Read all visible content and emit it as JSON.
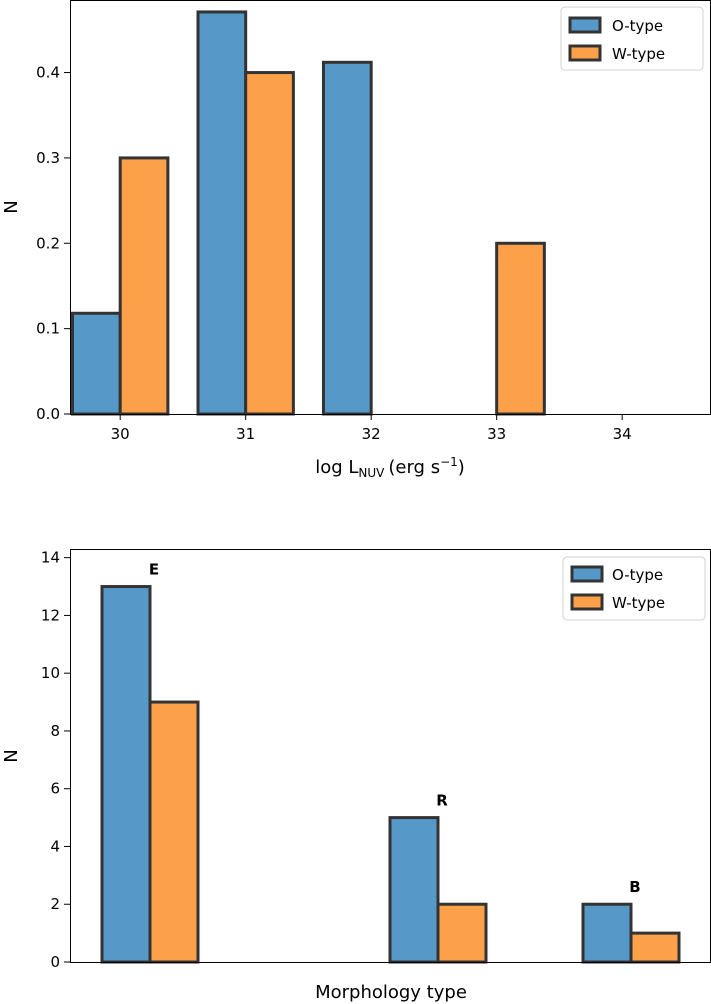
{
  "colors": {
    "o_type": "#5699c8",
    "w_type": "#fda04a",
    "edge": "#333333"
  },
  "chart_data": [
    {
      "type": "bar",
      "xlabel": "log L",
      "xlabel_sub": "NUV",
      "xlabel_unit": "(erg s",
      "xlabel_exp": "−1",
      "xlabel_close": ")",
      "ylabel": "N",
      "xlim": [
        29.6,
        34.7
      ],
      "ylim": [
        0,
        0.485
      ],
      "x_ticks": [
        30,
        31,
        32,
        33,
        34
      ],
      "x_tick_labels": [
        "30",
        "31",
        "32",
        "33",
        "34"
      ],
      "y_ticks": [
        0.0,
        0.1,
        0.2,
        0.3,
        0.4
      ],
      "y_tick_labels": [
        "0.0",
        "0.1",
        "0.2",
        "0.3",
        "0.4"
      ],
      "legend": "top-right",
      "series": [
        {
          "name": "O-type",
          "x": [
            30,
            31,
            32,
            33
          ],
          "values": [
            0.118,
            0.471,
            0.412,
            0.0
          ]
        },
        {
          "name": "W-type",
          "x": [
            30,
            31,
            32,
            33
          ],
          "values": [
            0.3,
            0.4,
            0.0,
            0.2
          ]
        }
      ]
    },
    {
      "type": "bar",
      "xlabel": "Morphology type",
      "ylabel": "N",
      "ylim": [
        0,
        14.3
      ],
      "y_ticks": [
        0,
        2,
        4,
        6,
        8,
        10,
        12,
        14
      ],
      "y_tick_labels": [
        "0",
        "2",
        "4",
        "6",
        "8",
        "10",
        "12",
        "14"
      ],
      "legend": "top-right",
      "categories": [
        "E",
        "R",
        "B"
      ],
      "series": [
        {
          "name": "O-type",
          "values": [
            13,
            5,
            2
          ]
        },
        {
          "name": "W-type",
          "values": [
            9,
            2,
            1
          ]
        }
      ]
    }
  ]
}
